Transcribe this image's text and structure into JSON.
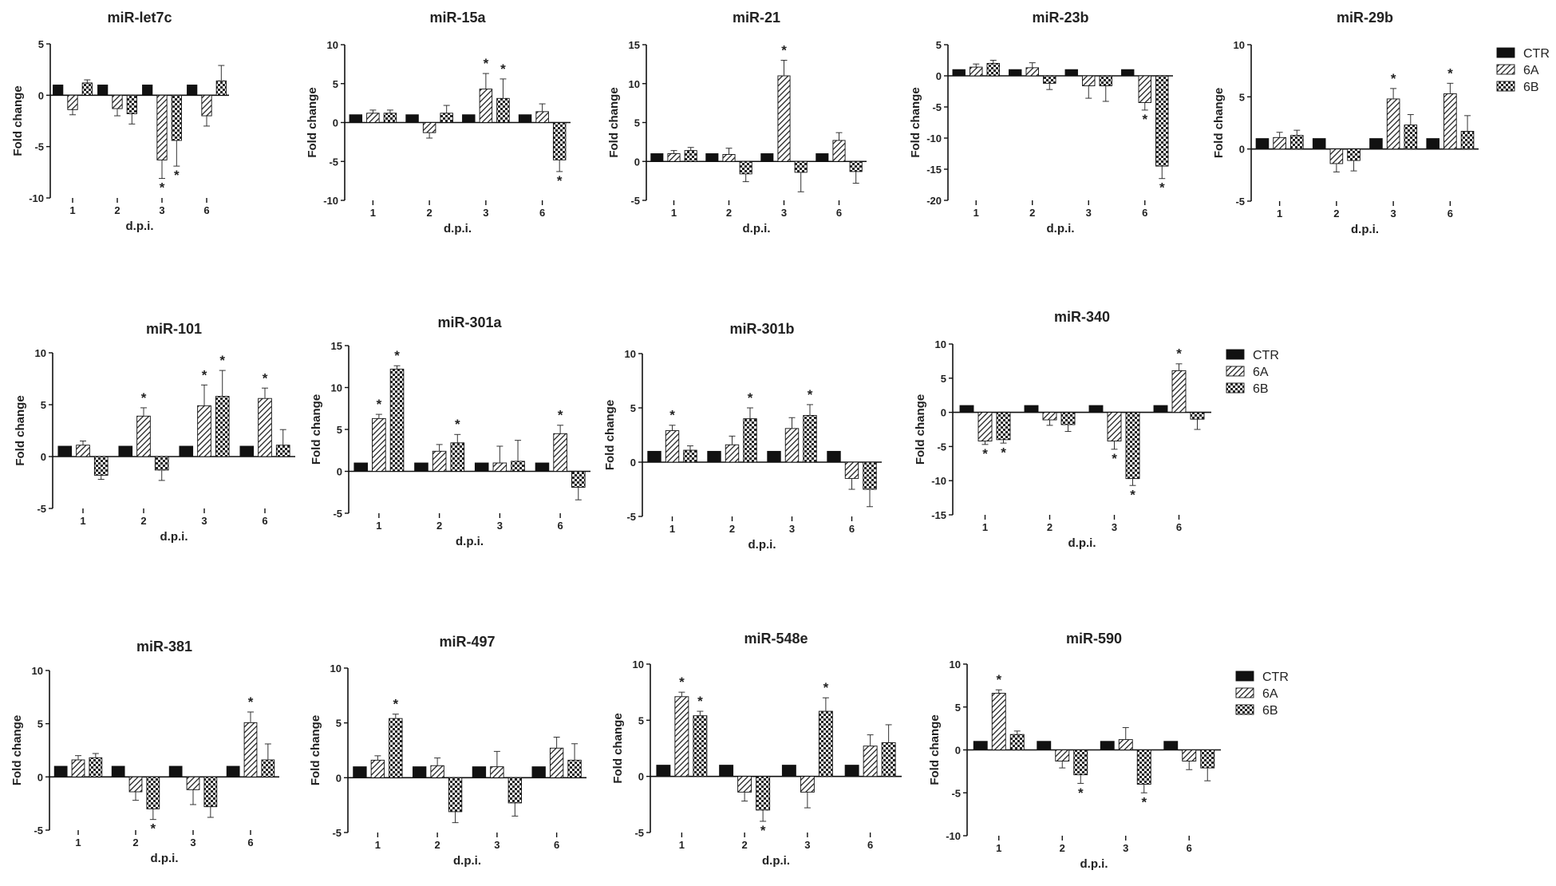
{
  "colors": {
    "ctr": "#111111",
    "axis": "#111111",
    "background": "#ffffff"
  },
  "chart_data": [
    {
      "type": "bar",
      "title": "miR-let7c",
      "ylabel": "Fold change",
      "xlabel": "d.p.i.",
      "categories": [
        "1",
        "2",
        "3",
        "6"
      ],
      "ylim": [
        -10,
        5
      ],
      "yticks": [
        -10,
        -5,
        0,
        5
      ],
      "series": [
        {
          "name": "CTR",
          "values": [
            1,
            1,
            1,
            1
          ],
          "errors": [
            0,
            0,
            0,
            0
          ],
          "significant": [
            false,
            false,
            false,
            false
          ]
        },
        {
          "name": "6A",
          "values": [
            -1.4,
            -1.3,
            -6.3,
            -2
          ],
          "errors": [
            0.5,
            0.7,
            1.8,
            1.0
          ],
          "significant": [
            false,
            false,
            true,
            false
          ]
        },
        {
          "name": "6B",
          "values": [
            1.2,
            -1.8,
            -4.4,
            1.4
          ],
          "errors": [
            0.3,
            1.0,
            2.5,
            1.5
          ],
          "significant": [
            false,
            false,
            true,
            false
          ]
        }
      ]
    },
    {
      "type": "bar",
      "title": "miR-15a",
      "ylabel": "Fold change",
      "xlabel": "d.p.i.",
      "categories": [
        "1",
        "2",
        "3",
        "6"
      ],
      "ylim": [
        -10,
        10
      ],
      "yticks": [
        -10,
        -5,
        0,
        5,
        10
      ],
      "series": [
        {
          "name": "CTR",
          "values": [
            1,
            1,
            1,
            1
          ],
          "errors": [
            0,
            0,
            0,
            0
          ],
          "significant": [
            false,
            false,
            false,
            false
          ]
        },
        {
          "name": "6A",
          "values": [
            1.2,
            -1.3,
            4.3,
            1.4
          ],
          "errors": [
            0.4,
            0.7,
            2.0,
            1.0
          ],
          "significant": [
            false,
            false,
            true,
            false
          ]
        },
        {
          "name": "6B",
          "values": [
            1.2,
            1.2,
            3.1,
            -4.8
          ],
          "errors": [
            0.4,
            1.0,
            2.5,
            1.5
          ],
          "significant": [
            false,
            false,
            true,
            true
          ]
        }
      ]
    },
    {
      "type": "bar",
      "title": "miR-21",
      "ylabel": "Fold change",
      "xlabel": "d.p.i.",
      "categories": [
        "1",
        "2",
        "3",
        "6"
      ],
      "ylim": [
        -5,
        15
      ],
      "yticks": [
        -5,
        0,
        5,
        10,
        15
      ],
      "series": [
        {
          "name": "CTR",
          "values": [
            1,
            1,
            1,
            1
          ],
          "errors": [
            0,
            0,
            0,
            0
          ],
          "significant": [
            false,
            false,
            false,
            false
          ]
        },
        {
          "name": "6A",
          "values": [
            1.0,
            0.9,
            11.0,
            2.7
          ],
          "errors": [
            0.4,
            0.8,
            2.0,
            1.0
          ],
          "significant": [
            false,
            false,
            true,
            false
          ]
        },
        {
          "name": "6B",
          "values": [
            1.4,
            -1.6,
            -1.4,
            -1.3
          ],
          "errors": [
            0.4,
            1.0,
            2.5,
            1.5
          ],
          "significant": [
            false,
            false,
            false,
            false
          ]
        }
      ]
    },
    {
      "type": "bar",
      "title": "miR-23b",
      "ylabel": "Fold change",
      "xlabel": "d.p.i.",
      "categories": [
        "1",
        "2",
        "3",
        "6"
      ],
      "ylim": [
        -20,
        5
      ],
      "yticks": [
        -20,
        -15,
        -10,
        -5,
        0,
        5
      ],
      "series": [
        {
          "name": "CTR",
          "values": [
            1,
            1,
            1,
            1
          ],
          "errors": [
            0,
            0,
            0,
            0
          ],
          "significant": [
            false,
            false,
            false,
            false
          ]
        },
        {
          "name": "6A",
          "values": [
            1.4,
            1.3,
            -1.6,
            -4.3
          ],
          "errors": [
            0.5,
            0.8,
            2.0,
            1.2
          ],
          "significant": [
            false,
            false,
            false,
            true
          ]
        },
        {
          "name": "6B",
          "values": [
            2.0,
            -1.2,
            -1.6,
            -14.5
          ],
          "errors": [
            0.5,
            1.0,
            2.5,
            2.0
          ],
          "significant": [
            false,
            false,
            false,
            true
          ]
        }
      ]
    },
    {
      "type": "bar",
      "title": "miR-29b",
      "ylabel": "Fold change",
      "xlabel": "d.p.i.",
      "categories": [
        "1",
        "2",
        "3",
        "6"
      ],
      "ylim": [
        -5,
        10
      ],
      "yticks": [
        -5,
        0,
        5,
        10
      ],
      "series": [
        {
          "name": "CTR",
          "values": [
            1,
            1,
            1,
            1
          ],
          "errors": [
            0,
            0,
            0,
            0
          ],
          "significant": [
            false,
            false,
            false,
            false
          ]
        },
        {
          "name": "6A",
          "values": [
            1.1,
            -1.4,
            4.8,
            5.3
          ],
          "errors": [
            0.5,
            0.8,
            1.0,
            1.0
          ],
          "significant": [
            false,
            false,
            true,
            true
          ]
        },
        {
          "name": "6B",
          "values": [
            1.3,
            -1.1,
            2.3,
            1.7
          ],
          "errors": [
            0.5,
            1.0,
            1.0,
            1.5
          ],
          "significant": [
            false,
            false,
            false,
            false
          ]
        }
      ]
    },
    {
      "type": "bar",
      "title": "miR-101",
      "ylabel": "Fold change",
      "xlabel": "d.p.i.",
      "categories": [
        "1",
        "2",
        "3",
        "6"
      ],
      "ylim": [
        -5,
        10
      ],
      "yticks": [
        -5,
        0,
        5,
        10
      ],
      "series": [
        {
          "name": "CTR",
          "values": [
            1,
            1,
            1,
            1
          ],
          "errors": [
            0,
            0,
            0,
            0
          ],
          "significant": [
            false,
            false,
            false,
            false
          ]
        },
        {
          "name": "6A",
          "values": [
            1.1,
            3.9,
            4.9,
            5.6
          ],
          "errors": [
            0.4,
            0.8,
            2.0,
            1.0
          ],
          "significant": [
            false,
            true,
            true,
            true
          ]
        },
        {
          "name": "6B",
          "values": [
            -1.8,
            -1.3,
            5.8,
            1.1
          ],
          "errors": [
            0.4,
            1.0,
            2.5,
            1.5
          ],
          "significant": [
            false,
            false,
            true,
            false
          ]
        }
      ]
    },
    {
      "type": "bar",
      "title": "miR-301a",
      "ylabel": "Fold change",
      "xlabel": "d.p.i.",
      "categories": [
        "1",
        "2",
        "3",
        "6"
      ],
      "ylim": [
        -5,
        15
      ],
      "yticks": [
        -5,
        0,
        5,
        10,
        15
      ],
      "series": [
        {
          "name": "CTR",
          "values": [
            1,
            1,
            1,
            1
          ],
          "errors": [
            0,
            0,
            0,
            0
          ],
          "significant": [
            false,
            false,
            false,
            false
          ]
        },
        {
          "name": "6A",
          "values": [
            6.3,
            2.4,
            1.0,
            4.5
          ],
          "errors": [
            0.5,
            0.8,
            2.0,
            1.0
          ],
          "significant": [
            true,
            false,
            false,
            true
          ]
        },
        {
          "name": "6B",
          "values": [
            12.2,
            3.4,
            1.2,
            -1.9
          ],
          "errors": [
            0.4,
            1.0,
            2.5,
            1.5
          ],
          "significant": [
            true,
            true,
            false,
            false
          ]
        }
      ]
    },
    {
      "type": "bar",
      "title": "miR-301b",
      "ylabel": "Fold change",
      "xlabel": "d.p.i.",
      "categories": [
        "1",
        "2",
        "3",
        "6"
      ],
      "ylim": [
        -5,
        10
      ],
      "yticks": [
        -5,
        0,
        5,
        10
      ],
      "series": [
        {
          "name": "CTR",
          "values": [
            1,
            1,
            1,
            1
          ],
          "errors": [
            0,
            0,
            0,
            0
          ],
          "significant": [
            false,
            false,
            false,
            false
          ]
        },
        {
          "name": "6A",
          "values": [
            2.9,
            1.6,
            3.1,
            -1.5
          ],
          "errors": [
            0.5,
            0.8,
            1.0,
            1.0
          ],
          "significant": [
            true,
            false,
            false,
            false
          ]
        },
        {
          "name": "6B",
          "values": [
            1.1,
            4.0,
            4.3,
            -2.5
          ],
          "errors": [
            0.4,
            1.0,
            1.0,
            1.6
          ],
          "significant": [
            false,
            true,
            true,
            false
          ]
        }
      ]
    },
    {
      "type": "bar",
      "title": "miR-340",
      "ylabel": "Fold change",
      "xlabel": "d.p.i.",
      "categories": [
        "1",
        "2",
        "3",
        "6"
      ],
      "ylim": [
        -15,
        10
      ],
      "yticks": [
        -15,
        -10,
        -5,
        0,
        5,
        10
      ],
      "series": [
        {
          "name": "CTR",
          "values": [
            1,
            1,
            1,
            1
          ],
          "errors": [
            0,
            0,
            0,
            0
          ],
          "significant": [
            false,
            false,
            false,
            false
          ]
        },
        {
          "name": "6A",
          "values": [
            -4.2,
            -1.1,
            -4.2,
            6.1
          ],
          "errors": [
            0.5,
            0.8,
            1.2,
            1.0
          ],
          "significant": [
            true,
            false,
            true,
            true
          ]
        },
        {
          "name": "6B",
          "values": [
            -4.0,
            -1.8,
            -9.7,
            -1.0
          ],
          "errors": [
            0.5,
            1.0,
            1.0,
            1.5
          ],
          "significant": [
            true,
            false,
            true,
            false
          ]
        }
      ]
    },
    {
      "type": "bar",
      "title": "miR-381",
      "ylabel": "Fold change",
      "xlabel": "d.p.i.",
      "categories": [
        "1",
        "2",
        "3",
        "6"
      ],
      "ylim": [
        -5,
        10
      ],
      "yticks": [
        -5,
        0,
        5,
        10
      ],
      "series": [
        {
          "name": "CTR",
          "values": [
            1,
            1,
            1,
            1
          ],
          "errors": [
            0,
            0,
            0,
            0
          ],
          "significant": [
            false,
            false,
            false,
            false
          ]
        },
        {
          "name": "6A",
          "values": [
            1.6,
            -1.4,
            -1.2,
            5.1
          ],
          "errors": [
            0.4,
            0.8,
            1.4,
            1.0
          ],
          "significant": [
            false,
            false,
            false,
            true
          ]
        },
        {
          "name": "6B",
          "values": [
            1.8,
            -3.0,
            -2.8,
            1.6
          ],
          "errors": [
            0.4,
            1.0,
            1.0,
            1.5
          ],
          "significant": [
            false,
            true,
            false,
            false
          ]
        }
      ]
    },
    {
      "type": "bar",
      "title": "miR-497",
      "ylabel": "Fold change",
      "xlabel": "d.p.i.",
      "categories": [
        "1",
        "2",
        "3",
        "6"
      ],
      "ylim": [
        -5,
        10
      ],
      "yticks": [
        -5,
        0,
        5,
        10
      ],
      "series": [
        {
          "name": "CTR",
          "values": [
            1,
            1,
            1,
            1
          ],
          "errors": [
            0,
            0,
            0,
            0
          ],
          "significant": [
            false,
            false,
            false,
            false
          ]
        },
        {
          "name": "6A",
          "values": [
            1.6,
            1.1,
            1.0,
            2.7
          ],
          "errors": [
            0.4,
            0.7,
            1.4,
            1.0
          ],
          "significant": [
            false,
            false,
            false,
            false
          ]
        },
        {
          "name": "6B",
          "values": [
            5.4,
            -3.1,
            -2.3,
            1.6
          ],
          "errors": [
            0.4,
            1.0,
            1.2,
            1.5
          ],
          "significant": [
            true,
            false,
            false,
            false
          ]
        }
      ]
    },
    {
      "type": "bar",
      "title": "miR-548e",
      "ylabel": "Fold change",
      "xlabel": "d.p.i.",
      "categories": [
        "1",
        "2",
        "3",
        "6"
      ],
      "ylim": [
        -5,
        10
      ],
      "yticks": [
        -5,
        0,
        5,
        10
      ],
      "series": [
        {
          "name": "CTR",
          "values": [
            1,
            1,
            1,
            1
          ],
          "errors": [
            0,
            0,
            0,
            0
          ],
          "significant": [
            false,
            false,
            false,
            false
          ]
        },
        {
          "name": "6A",
          "values": [
            7.1,
            -1.4,
            -1.4,
            2.7
          ],
          "errors": [
            0.4,
            0.8,
            1.4,
            1.0
          ],
          "significant": [
            true,
            false,
            false,
            false
          ]
        },
        {
          "name": "6B",
          "values": [
            5.4,
            -3.0,
            5.8,
            3.0
          ],
          "errors": [
            0.4,
            1.0,
            1.2,
            1.6
          ],
          "significant": [
            true,
            true,
            true,
            false
          ]
        }
      ]
    },
    {
      "type": "bar",
      "title": "miR-590",
      "ylabel": "Fold change",
      "xlabel": "d.p.i.",
      "categories": [
        "1",
        "2",
        "3",
        "6"
      ],
      "ylim": [
        -10,
        10
      ],
      "yticks": [
        -10,
        -5,
        0,
        5,
        10
      ],
      "series": [
        {
          "name": "CTR",
          "values": [
            1,
            1,
            1,
            1
          ],
          "errors": [
            0,
            0,
            0,
            0
          ],
          "significant": [
            false,
            false,
            false,
            false
          ]
        },
        {
          "name": "6A",
          "values": [
            6.6,
            -1.3,
            1.2,
            -1.3
          ],
          "errors": [
            0.4,
            0.8,
            1.4,
            1.0
          ],
          "significant": [
            true,
            false,
            false,
            false
          ]
        },
        {
          "name": "6B",
          "values": [
            1.8,
            -2.9,
            -4.0,
            -2.1
          ],
          "errors": [
            0.4,
            1.0,
            1.0,
            1.5
          ],
          "significant": [
            false,
            true,
            true,
            false
          ]
        }
      ]
    }
  ],
  "legends": [
    {
      "placement": "right of row 1",
      "entries": [
        "CTR",
        "6A",
        "6B"
      ]
    },
    {
      "placement": "right of row 2",
      "entries": [
        "CTR",
        "6A",
        "6B"
      ]
    },
    {
      "placement": "right of row 3",
      "entries": [
        "CTR",
        "6A",
        "6B"
      ]
    }
  ],
  "significance_marker": "*"
}
